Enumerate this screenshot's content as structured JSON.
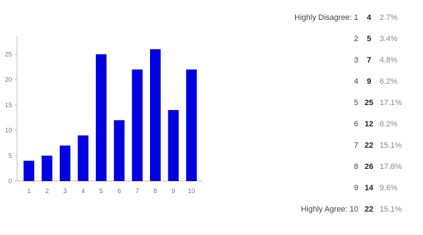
{
  "chart_data": {
    "type": "bar",
    "categories": [
      "1",
      "2",
      "3",
      "4",
      "5",
      "6",
      "7",
      "8",
      "9",
      "10"
    ],
    "values": [
      4,
      5,
      7,
      9,
      25,
      12,
      22,
      26,
      14,
      22
    ],
    "ylim": [
      0,
      28
    ],
    "yticks": [
      0,
      5,
      10,
      15,
      20,
      25
    ],
    "title": "",
    "xlabel": "",
    "ylabel": "",
    "bar_color": "#0000e0",
    "grid": false,
    "legend": "none"
  },
  "table": {
    "rows": [
      {
        "prefix": "Highly Disagree:",
        "num": "1",
        "count": "4",
        "percent": "2.7%"
      },
      {
        "prefix": "",
        "num": "2",
        "count": "5",
        "percent": "3.4%"
      },
      {
        "prefix": "",
        "num": "3",
        "count": "7",
        "percent": "4.8%"
      },
      {
        "prefix": "",
        "num": "4",
        "count": "9",
        "percent": "6.2%"
      },
      {
        "prefix": "",
        "num": "5",
        "count": "25",
        "percent": "17.1%"
      },
      {
        "prefix": "",
        "num": "6",
        "count": "12",
        "percent": "8.2%"
      },
      {
        "prefix": "",
        "num": "7",
        "count": "22",
        "percent": "15.1%"
      },
      {
        "prefix": "",
        "num": "8",
        "count": "26",
        "percent": "17.8%"
      },
      {
        "prefix": "",
        "num": "9",
        "count": "14",
        "percent": "9.6%"
      },
      {
        "prefix": "Highly Agree:",
        "num": "10",
        "count": "22",
        "percent": "15.1%"
      }
    ]
  }
}
